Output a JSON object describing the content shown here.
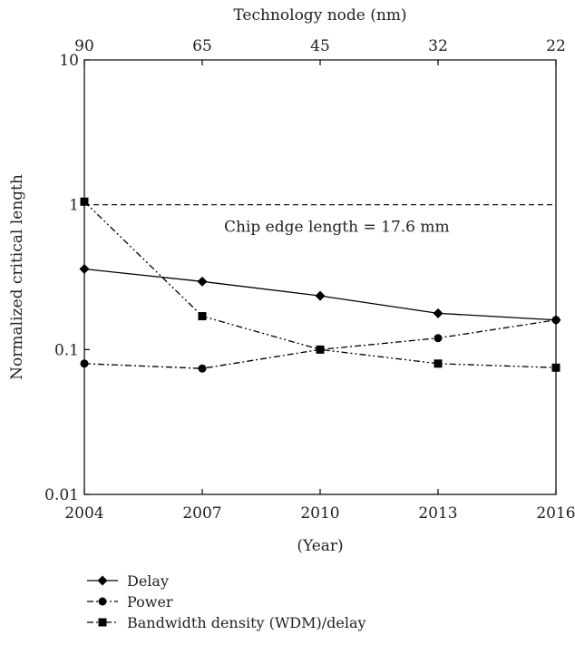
{
  "chart_data": {
    "type": "line",
    "title": "",
    "top_axis": {
      "label": "Technology node (nm)",
      "ticks": [
        "90",
        "65",
        "45",
        "32",
        "22"
      ]
    },
    "xlabel": "(Year)",
    "ylabel": "Normalized critical length",
    "x": [
      2004,
      2007,
      2010,
      2013,
      2016
    ],
    "x_tick_labels": [
      "2004",
      "2007",
      "2010",
      "2013",
      "2016"
    ],
    "xlim": [
      2004,
      2016
    ],
    "y_scale": "log",
    "ylim": [
      0.01,
      10
    ],
    "y_tick_labels": [
      "0.01",
      "0.1",
      "1",
      "10"
    ],
    "grid": false,
    "legend_placement": "bottom-left",
    "series": [
      {
        "name": "Delay",
        "values": [
          0.36,
          0.295,
          0.235,
          0.178,
          0.16
        ],
        "marker": "diamond",
        "line_style": "solid",
        "color": "#000000"
      },
      {
        "name": "Power",
        "values": [
          0.08,
          0.074,
          0.1,
          0.12,
          0.16
        ],
        "marker": "circle",
        "line_style": "dash-dot",
        "color": "#000000"
      },
      {
        "name": "Bandwidth density (WDM)/delay",
        "values": [
          1.05,
          0.17,
          0.1,
          0.08,
          0.075
        ],
        "marker": "square",
        "line_style": "dash-dot-dot",
        "color": "#000000"
      }
    ],
    "reference_line": {
      "value": 1,
      "line_style": "dashed",
      "label": "Chip edge length = 17.6 mm"
    }
  }
}
